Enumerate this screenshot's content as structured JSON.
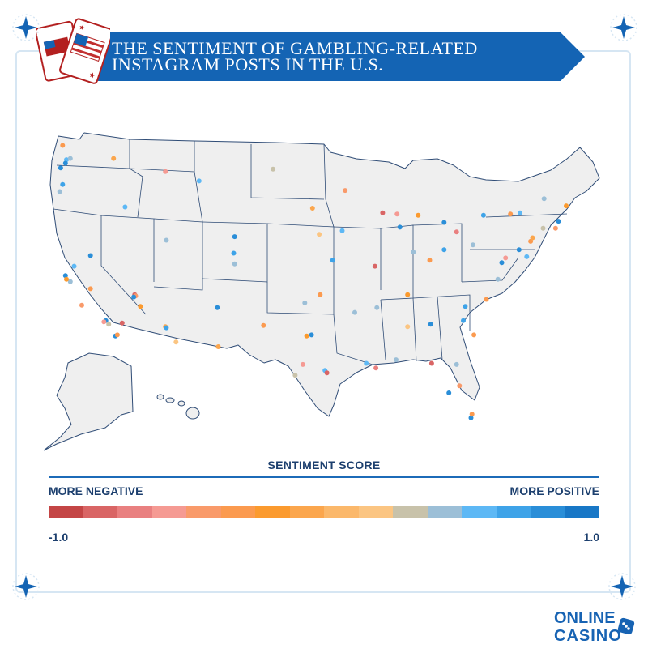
{
  "title": {
    "line1": "THE SENTIMENT OF GAMBLING-RELATED",
    "line2": "INSTAGRAM POSTS IN THE U.S."
  },
  "legend": {
    "title": "SENTIMENT SCORE",
    "negative_label": "MORE NEGATIVE",
    "positive_label": "MORE POSITIVE",
    "min_label": "-1.0",
    "max_label": "1.0",
    "scale_colors": [
      "#c44545",
      "#d96565",
      "#e98080",
      "#f59a93",
      "#f99a6a",
      "#fb9a4f",
      "#fb9a2e",
      "#fba64d",
      "#fbb86b",
      "#fbc582",
      "#c8c2aa",
      "#9cbfd7",
      "#5db8f5",
      "#3ea3e8",
      "#2a8ed8",
      "#1877c6"
    ]
  },
  "colors": {
    "banner": "#1464b4",
    "map_fill": "#efefef",
    "map_stroke": "#2f4c76",
    "frame": "#d6e6f3"
  },
  "logo": {
    "line1": "ONLINE",
    "line2": "CASINO"
  },
  "icons": [
    "flag-cards-icon",
    "star-corner-icon",
    "dice-icon"
  ],
  "map_points": [
    {
      "lon": -122.3,
      "lat": 47.6,
      "s": 0.6
    },
    {
      "lon": -122.4,
      "lat": 47.3,
      "s": 0.8
    },
    {
      "lon": -122.7,
      "lat": 48.8,
      "s": -0.3
    },
    {
      "lon": -122.9,
      "lat": 46.9,
      "s": 0.9
    },
    {
      "lon": -121.9,
      "lat": 47.7,
      "s": 0.4
    },
    {
      "lon": -117.4,
      "lat": 47.7,
      "s": -0.1
    },
    {
      "lon": -122.7,
      "lat": 45.5,
      "s": 0.7
    },
    {
      "lon": -123.0,
      "lat": 44.9,
      "s": 0.5
    },
    {
      "lon": -116.2,
      "lat": 43.6,
      "s": 0.6
    },
    {
      "lon": -119.8,
      "lat": 39.5,
      "s": 0.8
    },
    {
      "lon": -115.2,
      "lat": 36.2,
      "s": -0.8
    },
    {
      "lon": -115.1,
      "lat": 36.1,
      "s": -0.5
    },
    {
      "lon": -115.3,
      "lat": 36.0,
      "s": 0.9
    },
    {
      "lon": -114.6,
      "lat": 35.2,
      "s": -0.2
    },
    {
      "lon": -112.0,
      "lat": 33.5,
      "s": -0.1
    },
    {
      "lon": -111.9,
      "lat": 33.4,
      "s": 0.7
    },
    {
      "lon": -110.9,
      "lat": 32.2,
      "s": 0.2
    },
    {
      "lon": -118.2,
      "lat": 34.0,
      "s": 0.9
    },
    {
      "lon": -118.4,
      "lat": 33.9,
      "s": -0.6
    },
    {
      "lon": -117.9,
      "lat": 33.7,
      "s": 0.3
    },
    {
      "lon": -117.2,
      "lat": 32.7,
      "s": 0.8
    },
    {
      "lon": -117.0,
      "lat": 32.8,
      "s": -0.3
    },
    {
      "lon": -116.5,
      "lat": 33.8,
      "s": -0.9
    },
    {
      "lon": -119.8,
      "lat": 36.7,
      "s": -0.4
    },
    {
      "lon": -121.9,
      "lat": 37.3,
      "s": 0.5
    },
    {
      "lon": -122.4,
      "lat": 37.8,
      "s": 0.9
    },
    {
      "lon": -122.3,
      "lat": 37.5,
      "s": -0.2
    },
    {
      "lon": -121.5,
      "lat": 38.6,
      "s": 0.6
    },
    {
      "lon": -120.7,
      "lat": 35.3,
      "s": -0.5
    },
    {
      "lon": -111.9,
      "lat": 40.8,
      "s": 0.4
    },
    {
      "lon": -104.9,
      "lat": 39.7,
      "s": 0.7
    },
    {
      "lon": -104.8,
      "lat": 38.8,
      "s": 0.5
    },
    {
      "lon": -106.6,
      "lat": 35.1,
      "s": 0.9
    },
    {
      "lon": -106.5,
      "lat": 31.8,
      "s": -0.1
    },
    {
      "lon": -101.8,
      "lat": 33.6,
      "s": -0.3
    },
    {
      "lon": -97.7,
      "lat": 30.3,
      "s": -0.6
    },
    {
      "lon": -96.8,
      "lat": 32.8,
      "s": 0.8
    },
    {
      "lon": -97.3,
      "lat": 32.7,
      "s": -0.2
    },
    {
      "lon": -95.4,
      "lat": 29.8,
      "s": 0.6
    },
    {
      "lon": -95.2,
      "lat": 29.6,
      "s": -0.8
    },
    {
      "lon": -98.5,
      "lat": 29.4,
      "s": 0.3
    },
    {
      "lon": -97.5,
      "lat": 35.5,
      "s": 0.5
    },
    {
      "lon": -95.9,
      "lat": 36.2,
      "s": -0.4
    },
    {
      "lon": -94.6,
      "lat": 39.1,
      "s": 0.7
    },
    {
      "lon": -96.0,
      "lat": 41.3,
      "s": 0.2
    },
    {
      "lon": -93.6,
      "lat": 41.6,
      "s": 0.6
    },
    {
      "lon": -93.3,
      "lat": 45.0,
      "s": -0.5
    },
    {
      "lon": -90.2,
      "lat": 38.6,
      "s": -0.9
    },
    {
      "lon": -87.6,
      "lat": 41.9,
      "s": 0.9
    },
    {
      "lon": -87.9,
      "lat": 43.0,
      "s": -0.6
    },
    {
      "lon": -86.2,
      "lat": 39.8,
      "s": 0.4
    },
    {
      "lon": -84.5,
      "lat": 39.1,
      "s": -0.3
    },
    {
      "lon": -83.0,
      "lat": 40.0,
      "s": 0.7
    },
    {
      "lon": -81.7,
      "lat": 41.5,
      "s": -0.7
    },
    {
      "lon": -83.0,
      "lat": 42.3,
      "s": 0.8
    },
    {
      "lon": -85.7,
      "lat": 42.9,
      "s": -0.2
    },
    {
      "lon": -80.0,
      "lat": 40.4,
      "s": 0.5
    },
    {
      "lon": -75.2,
      "lat": 40.0,
      "s": 0.9
    },
    {
      "lon": -74.0,
      "lat": 40.7,
      "s": -0.4
    },
    {
      "lon": -74.4,
      "lat": 39.4,
      "s": 0.6
    },
    {
      "lon": -73.8,
      "lat": 41.0,
      "s": -0.1
    },
    {
      "lon": -71.1,
      "lat": 42.4,
      "s": 0.8
    },
    {
      "lon": -71.4,
      "lat": 41.8,
      "s": -0.5
    },
    {
      "lon": -72.7,
      "lat": 41.8,
      "s": 0.3
    },
    {
      "lon": -77.0,
      "lat": 38.9,
      "s": 0.9
    },
    {
      "lon": -76.6,
      "lat": 39.3,
      "s": -0.6
    },
    {
      "lon": -77.4,
      "lat": 37.5,
      "s": 0.4
    },
    {
      "lon": -80.8,
      "lat": 35.2,
      "s": 0.7
    },
    {
      "lon": -78.6,
      "lat": 35.8,
      "s": -0.3
    },
    {
      "lon": -84.4,
      "lat": 33.7,
      "s": 0.8
    },
    {
      "lon": -86.8,
      "lat": 36.2,
      "s": -0.2
    },
    {
      "lon": -90.0,
      "lat": 35.1,
      "s": 0.5
    },
    {
      "lon": -90.1,
      "lat": 30.0,
      "s": -0.7
    },
    {
      "lon": -91.1,
      "lat": 30.4,
      "s": 0.6
    },
    {
      "lon": -86.8,
      "lat": 33.5,
      "s": 0.2
    },
    {
      "lon": -82.5,
      "lat": 27.9,
      "s": 0.8
    },
    {
      "lon": -81.4,
      "lat": 28.5,
      "s": -0.5
    },
    {
      "lon": -80.2,
      "lat": 25.8,
      "s": 0.9
    },
    {
      "lon": -80.1,
      "lat": 26.1,
      "s": -0.3
    },
    {
      "lon": -81.7,
      "lat": 30.3,
      "s": 0.4
    },
    {
      "lon": -84.3,
      "lat": 30.4,
      "s": -0.8
    },
    {
      "lon": -75.1,
      "lat": 43.1,
      "s": 0.6
    },
    {
      "lon": -76.1,
      "lat": 43.0,
      "s": -0.4
    },
    {
      "lon": -78.9,
      "lat": 42.9,
      "s": 0.7
    },
    {
      "lon": -70.3,
      "lat": 43.7,
      "s": -0.2
    },
    {
      "lon": -72.6,
      "lat": 44.3,
      "s": 0.5
    },
    {
      "lon": -100.8,
      "lat": 46.8,
      "s": 0.3
    },
    {
      "lon": -96.7,
      "lat": 43.5,
      "s": -0.1
    },
    {
      "lon": -108.5,
      "lat": 45.8,
      "s": 0.6
    },
    {
      "lon": -104.8,
      "lat": 41.1,
      "s": 0.8
    },
    {
      "lon": -112.0,
      "lat": 46.6,
      "s": -0.6
    },
    {
      "lon": -92.3,
      "lat": 34.7,
      "s": 0.4
    },
    {
      "lon": -89.4,
      "lat": 43.1,
      "s": -0.9
    },
    {
      "lon": -88.0,
      "lat": 30.7,
      "s": 0.5
    },
    {
      "lon": -79.9,
      "lat": 32.8,
      "s": -0.3
    },
    {
      "lon": -81.0,
      "lat": 34.0,
      "s": 0.7
    }
  ]
}
